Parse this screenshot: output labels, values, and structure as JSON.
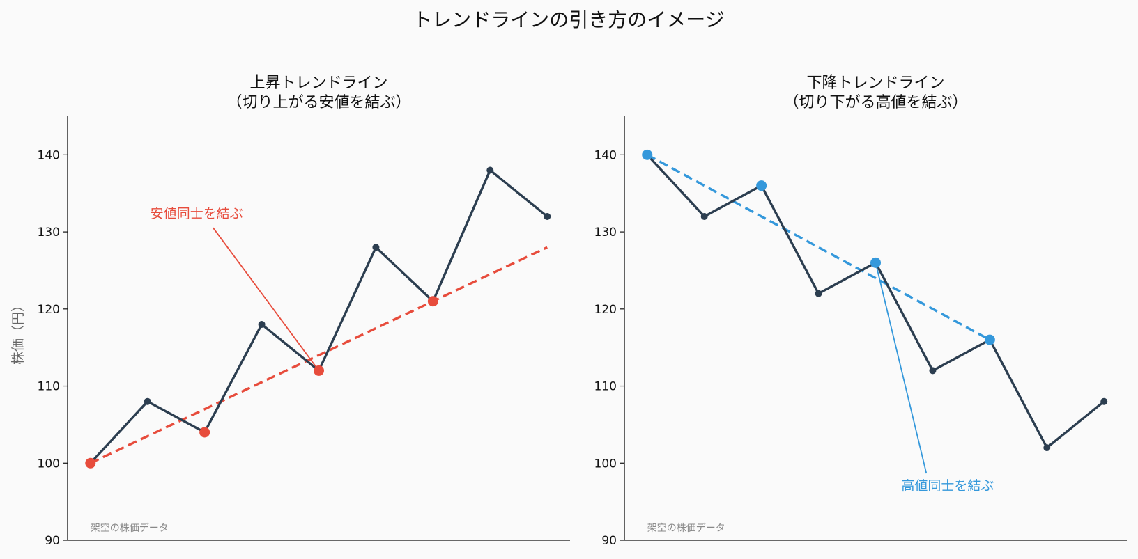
{
  "title": "トレンドラインの引き方のイメージ",
  "chart_data": [
    {
      "type": "line",
      "title_lines": [
        "上昇トレンドライン",
        "（切り上がる安値を結ぶ）"
      ],
      "ylabel": "株価（円）",
      "ylim": [
        90,
        145
      ],
      "yticks": [
        90,
        100,
        110,
        120,
        130,
        140
      ],
      "grid": false,
      "x": [
        0,
        1,
        2,
        3,
        4,
        5,
        6,
        7,
        8
      ],
      "series": [
        {
          "values": [
            100,
            108,
            104,
            118,
            112,
            128,
            121,
            138,
            132
          ],
          "color": "#2c3e50"
        }
      ],
      "highlight_points": {
        "x": [
          0,
          2,
          4,
          6
        ],
        "y": [
          100,
          104,
          112,
          121
        ],
        "color": "#e74c3c"
      },
      "trendline": {
        "x": [
          0,
          8
        ],
        "y": [
          100,
          128
        ],
        "color": "#e74c3c",
        "style": "dashed"
      },
      "annotation": {
        "text": "安値同士を結ぶ",
        "text_x": 1.05,
        "text_y": 131.8,
        "target_x": 4,
        "target_y": 112,
        "color": "#e74c3c"
      },
      "source_note": "架空の株価データ"
    },
    {
      "type": "line",
      "title_lines": [
        "下降トレンドライン",
        "（切り下がる高値を結ぶ）"
      ],
      "ylabel": "",
      "ylim": [
        90,
        145
      ],
      "yticks": [
        90,
        100,
        110,
        120,
        130,
        140
      ],
      "grid": false,
      "x": [
        0,
        1,
        2,
        3,
        4,
        5,
        6,
        7,
        8
      ],
      "series": [
        {
          "values": [
            140,
            132,
            136,
            122,
            126,
            112,
            116,
            102,
            108
          ],
          "color": "#2c3e50"
        }
      ],
      "highlight_points": {
        "x": [
          0,
          2,
          4,
          6
        ],
        "y": [
          140,
          136,
          126,
          116
        ],
        "color": "#3498db"
      },
      "trendline": {
        "x": [
          0,
          6
        ],
        "y": [
          140,
          116
        ],
        "color": "#3498db",
        "style": "dashed"
      },
      "annotation": {
        "text": "高値同士を結ぶ",
        "text_x": 4.45,
        "text_y": 96.5,
        "target_x": 4,
        "target_y": 126,
        "color": "#3498db"
      },
      "source_note": "架空の株価データ"
    }
  ]
}
